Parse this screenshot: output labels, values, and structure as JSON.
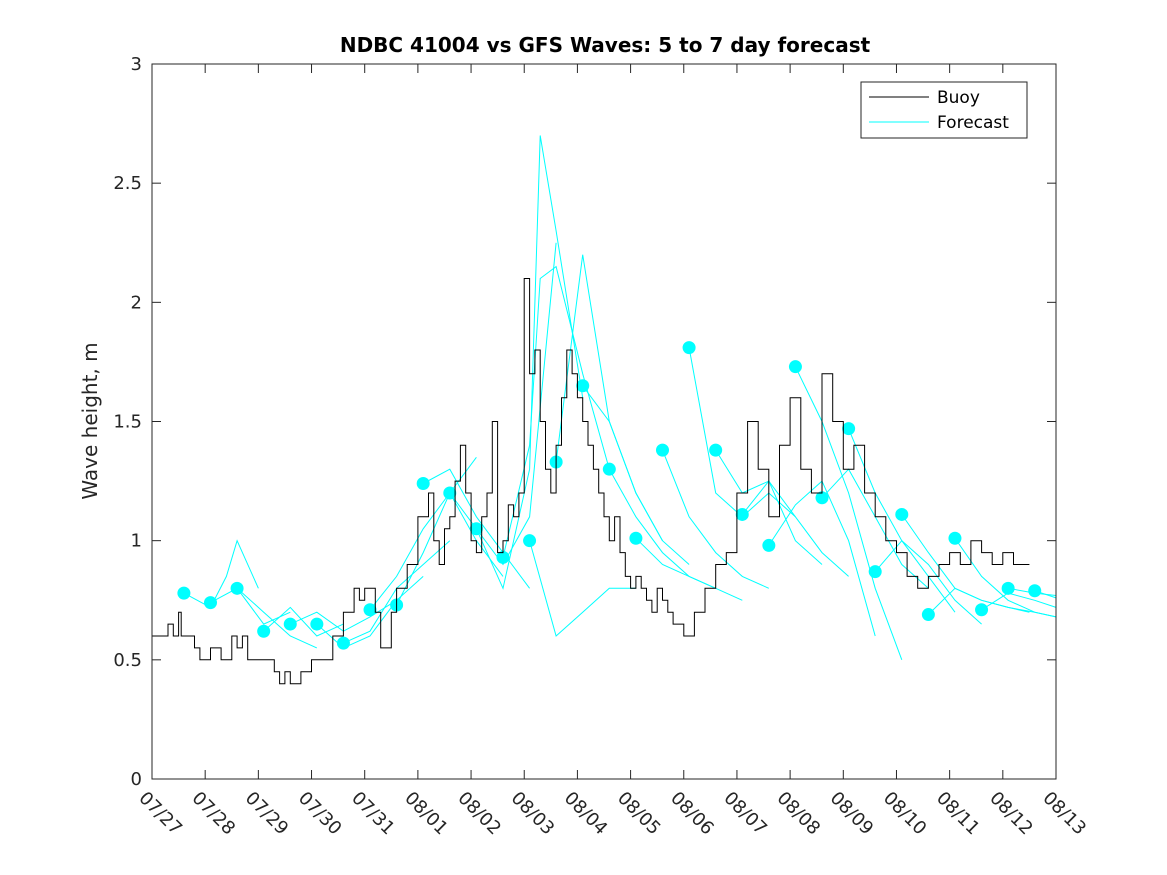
{
  "chart_data": {
    "type": "line",
    "title": "NDBC 41004 vs GFS Waves: 5 to 7 day forecast",
    "xlabel": "",
    "ylabel": "Wave height, m",
    "ylim": [
      0,
      3
    ],
    "yticks": [
      "0",
      "0.5",
      "1",
      "1.5",
      "2",
      "2.5",
      "3"
    ],
    "xlim_days": [
      0,
      17
    ],
    "xtick_labels": [
      "07/27",
      "07/28",
      "07/29",
      "07/30",
      "07/31",
      "08/01",
      "08/02",
      "08/03",
      "08/04",
      "08/05",
      "08/06",
      "08/07",
      "08/08",
      "08/09",
      "08/10",
      "08/11",
      "08/12",
      "08/13"
    ],
    "grid": false,
    "legend_position": "top-right",
    "colors": {
      "buoy": "#000000",
      "forecast": "#00FFFF"
    },
    "legend": [
      "Buoy",
      "Forecast"
    ],
    "series": [
      {
        "name": "Buoy",
        "x": [
          0.0,
          0.3,
          0.4,
          0.5,
          0.55,
          0.8,
          0.9,
          1.1,
          1.3,
          1.5,
          1.6,
          1.7,
          1.8,
          1.9,
          2.0,
          2.3,
          2.4,
          2.5,
          2.6,
          2.8,
          3.0,
          3.2,
          3.4,
          3.6,
          3.8,
          3.9,
          4.0,
          4.2,
          4.3,
          4.5,
          4.6,
          4.8,
          5.0,
          5.2,
          5.3,
          5.4,
          5.5,
          5.6,
          5.7,
          5.8,
          5.9,
          6.0,
          6.1,
          6.2,
          6.3,
          6.4,
          6.5,
          6.6,
          6.7,
          6.8,
          6.9,
          7.0,
          7.1,
          7.2,
          7.3,
          7.4,
          7.5,
          7.6,
          7.7,
          7.8,
          7.9,
          8.0,
          8.1,
          8.2,
          8.3,
          8.4,
          8.5,
          8.6,
          8.7,
          8.8,
          8.9,
          9.0,
          9.1,
          9.2,
          9.3,
          9.4,
          9.5,
          9.6,
          9.7,
          9.8,
          10.0,
          10.2,
          10.4,
          10.6,
          10.8,
          11.0,
          11.2,
          11.4,
          11.6,
          11.8,
          12.0,
          12.2,
          12.4,
          12.6,
          12.8,
          13.0,
          13.2,
          13.4,
          13.6,
          13.8,
          14.0,
          14.2,
          14.4,
          14.6,
          14.8,
          15.0,
          15.2,
          15.4,
          15.6,
          15.8,
          16.0,
          16.2,
          16.5
        ],
        "y": [
          0.6,
          0.65,
          0.6,
          0.7,
          0.6,
          0.55,
          0.5,
          0.55,
          0.5,
          0.6,
          0.55,
          0.6,
          0.5,
          0.5,
          0.5,
          0.45,
          0.4,
          0.45,
          0.4,
          0.45,
          0.5,
          0.5,
          0.6,
          0.7,
          0.8,
          0.75,
          0.8,
          0.7,
          0.55,
          0.7,
          0.8,
          0.9,
          1.1,
          1.2,
          1.0,
          0.9,
          1.05,
          1.1,
          1.25,
          1.4,
          1.2,
          1.0,
          0.95,
          1.1,
          1.2,
          1.5,
          0.95,
          1.0,
          1.15,
          1.1,
          1.2,
          2.1,
          1.7,
          1.8,
          1.5,
          1.3,
          1.2,
          1.4,
          1.6,
          1.8,
          1.7,
          1.6,
          1.5,
          1.4,
          1.3,
          1.2,
          1.1,
          1.0,
          1.1,
          0.95,
          0.85,
          0.8,
          0.85,
          0.8,
          0.75,
          0.7,
          0.8,
          0.75,
          0.7,
          0.65,
          0.6,
          0.7,
          0.8,
          0.9,
          0.95,
          1.2,
          1.5,
          1.3,
          1.1,
          1.4,
          1.6,
          1.3,
          1.2,
          1.7,
          1.5,
          1.3,
          1.4,
          1.2,
          1.1,
          1.0,
          0.95,
          0.85,
          0.8,
          0.85,
          0.9,
          0.95,
          0.9,
          1.0,
          0.95,
          0.9,
          0.95,
          0.9,
          0.9
        ]
      },
      {
        "name": "Forecast",
        "x": [
          0.6,
          1.1,
          1.4,
          1.6,
          2.0
        ],
        "y": [
          0.78,
          0.72,
          0.85,
          1.0,
          0.8
        ],
        "marker": {
          "x": 0.6,
          "y": 0.78
        }
      },
      {
        "name": "Forecast",
        "x": [
          1.1,
          1.6,
          2.1,
          2.6
        ],
        "y": [
          0.74,
          0.8,
          0.65,
          0.7
        ],
        "marker": {
          "x": 1.1,
          "y": 0.74
        }
      },
      {
        "name": "Forecast",
        "x": [
          1.6,
          2.1,
          2.6,
          3.1
        ],
        "y": [
          0.8,
          0.7,
          0.6,
          0.55
        ],
        "marker": {
          "x": 1.6,
          "y": 0.8
        }
      },
      {
        "name": "Forecast",
        "x": [
          2.1,
          2.6,
          3.1,
          3.6
        ],
        "y": [
          0.62,
          0.72,
          0.6,
          0.65
        ],
        "marker": {
          "x": 2.1,
          "y": 0.62
        }
      },
      {
        "name": "Forecast",
        "x": [
          2.6,
          3.1,
          3.6,
          4.1,
          4.6
        ],
        "y": [
          0.65,
          0.7,
          0.62,
          0.68,
          0.75
        ],
        "marker": {
          "x": 2.6,
          "y": 0.65
        }
      },
      {
        "name": "Forecast",
        "x": [
          3.1,
          3.6,
          4.1,
          4.6,
          5.1
        ],
        "y": [
          0.65,
          0.55,
          0.6,
          0.75,
          0.85
        ],
        "marker": {
          "x": 3.1,
          "y": 0.65
        }
      },
      {
        "name": "Forecast",
        "x": [
          3.6,
          4.1,
          4.6,
          5.1,
          5.6
        ],
        "y": [
          0.57,
          0.62,
          0.8,
          0.9,
          1.0
        ],
        "marker": {
          "x": 3.6,
          "y": 0.57
        }
      },
      {
        "name": "Forecast",
        "x": [
          4.1,
          4.6,
          5.1,
          5.6,
          6.1
        ],
        "y": [
          0.71,
          0.85,
          1.05,
          1.2,
          1.35
        ],
        "marker": {
          "x": 4.1,
          "y": 0.71
        }
      },
      {
        "name": "Forecast",
        "x": [
          4.6,
          5.1,
          5.6,
          6.1,
          6.6
        ],
        "y": [
          0.73,
          0.95,
          1.2,
          1.0,
          0.85
        ],
        "marker": {
          "x": 4.6,
          "y": 0.73
        }
      },
      {
        "name": "Forecast",
        "x": [
          5.1,
          5.6,
          6.1,
          6.6,
          7.1
        ],
        "y": [
          1.24,
          1.3,
          1.1,
          0.95,
          0.8
        ],
        "marker": {
          "x": 5.1,
          "y": 1.24
        }
      },
      {
        "name": "Forecast",
        "x": [
          5.6,
          6.1,
          6.6,
          7.1,
          7.6
        ],
        "y": [
          1.2,
          1.05,
          0.9,
          1.1,
          2.25
        ],
        "marker": {
          "x": 5.6,
          "y": 1.2
        }
      },
      {
        "name": "Forecast",
        "x": [
          6.1,
          6.6,
          7.1,
          7.3,
          7.6,
          8.1
        ],
        "y": [
          1.05,
          0.8,
          1.3,
          2.7,
          2.3,
          1.6
        ],
        "marker": {
          "x": 6.1,
          "y": 1.05
        }
      },
      {
        "name": "Forecast",
        "x": [
          6.6,
          7.1,
          7.3,
          7.6,
          8.1,
          8.6
        ],
        "y": [
          0.93,
          1.4,
          2.1,
          2.15,
          1.7,
          1.3
        ],
        "marker": {
          "x": 6.6,
          "y": 0.93
        }
      },
      {
        "name": "Forecast",
        "x": [
          7.1,
          7.6,
          8.1,
          8.6,
          9.1
        ],
        "y": [
          1.0,
          0.6,
          0.7,
          0.8,
          0.8
        ],
        "marker": {
          "x": 7.1,
          "y": 1.0
        }
      },
      {
        "name": "Forecast",
        "x": [
          7.6,
          8.1,
          8.6,
          9.1,
          9.6
        ],
        "y": [
          1.33,
          2.2,
          1.5,
          1.2,
          1.0
        ],
        "marker": {
          "x": 7.6,
          "y": 1.33
        }
      },
      {
        "name": "Forecast",
        "x": [
          8.1,
          8.6,
          9.1,
          9.6,
          10.1
        ],
        "y": [
          1.65,
          1.5,
          1.2,
          1.0,
          0.9
        ],
        "marker": {
          "x": 8.1,
          "y": 1.65
        }
      },
      {
        "name": "Forecast",
        "x": [
          8.6,
          9.1,
          9.6,
          10.1,
          10.6
        ],
        "y": [
          1.3,
          1.1,
          0.95,
          0.85,
          0.8
        ],
        "marker": {
          "x": 8.6,
          "y": 1.3
        }
      },
      {
        "name": "Forecast",
        "x": [
          9.1,
          9.6,
          10.1,
          10.6,
          11.1
        ],
        "y": [
          1.01,
          0.9,
          0.85,
          0.8,
          0.75
        ],
        "marker": {
          "x": 9.1,
          "y": 1.01
        }
      },
      {
        "name": "Forecast",
        "x": [
          9.6,
          10.1,
          10.6,
          11.1,
          11.6
        ],
        "y": [
          1.38,
          1.1,
          0.95,
          0.85,
          0.8
        ],
        "marker": {
          "x": 9.6,
          "y": 1.38
        }
      },
      {
        "name": "Forecast",
        "x": [
          10.1,
          10.6,
          11.1,
          11.6,
          12.1
        ],
        "y": [
          1.81,
          1.2,
          1.1,
          1.2,
          1.1
        ],
        "marker": {
          "x": 10.1,
          "y": 1.81
        }
      },
      {
        "name": "Forecast",
        "x": [
          10.6,
          11.1,
          11.6,
          12.1,
          12.6
        ],
        "y": [
          1.38,
          1.2,
          1.25,
          1.0,
          0.9
        ],
        "marker": {
          "x": 10.6,
          "y": 1.38
        }
      },
      {
        "name": "Forecast",
        "x": [
          11.1,
          11.6,
          12.1,
          12.6,
          13.1
        ],
        "y": [
          1.11,
          1.25,
          1.1,
          0.95,
          0.85
        ],
        "marker": {
          "x": 11.1,
          "y": 1.11
        }
      },
      {
        "name": "Forecast",
        "x": [
          11.6,
          12.1,
          12.6,
          13.1,
          13.6
        ],
        "y": [
          0.98,
          1.15,
          1.25,
          1.0,
          0.6
        ],
        "marker": {
          "x": 11.6,
          "y": 0.98
        }
      },
      {
        "name": "Forecast",
        "x": [
          12.1,
          12.6,
          13.1,
          13.6,
          14.1
        ],
        "y": [
          1.73,
          1.5,
          1.2,
          0.8,
          0.5
        ],
        "marker": {
          "x": 12.1,
          "y": 1.73
        }
      },
      {
        "name": "Forecast",
        "x": [
          12.6,
          13.1,
          13.6,
          14.1,
          14.6
        ],
        "y": [
          1.18,
          1.3,
          1.1,
          0.9,
          0.8
        ],
        "marker": {
          "x": 12.6,
          "y": 1.18
        }
      },
      {
        "name": "Forecast",
        "x": [
          13.1,
          13.6,
          14.1,
          14.6,
          15.1
        ],
        "y": [
          1.47,
          1.2,
          1.0,
          0.85,
          0.7
        ],
        "marker": {
          "x": 13.1,
          "y": 1.47
        }
      },
      {
        "name": "Forecast",
        "x": [
          13.6,
          14.1,
          14.6,
          15.1,
          15.6
        ],
        "y": [
          0.87,
          1.0,
          0.9,
          0.75,
          0.65
        ],
        "marker": {
          "x": 13.6,
          "y": 0.87
        }
      },
      {
        "name": "Forecast",
        "x": [
          14.1,
          14.6,
          15.1,
          15.6,
          16.1,
          16.5
        ],
        "y": [
          1.11,
          0.95,
          0.8,
          0.75,
          0.72,
          0.7
        ],
        "marker": {
          "x": 14.1,
          "y": 1.11
        }
      },
      {
        "name": "Forecast",
        "x": [
          14.6,
          15.1,
          15.6,
          16.1,
          16.6,
          17.0
        ],
        "y": [
          0.69,
          0.8,
          0.75,
          0.72,
          0.7,
          0.68
        ],
        "marker": {
          "x": 14.6,
          "y": 0.69
        }
      },
      {
        "name": "Forecast",
        "x": [
          15.1,
          15.6,
          16.1,
          16.6,
          17.0
        ],
        "y": [
          1.01,
          0.85,
          0.75,
          0.7,
          0.68
        ],
        "marker": {
          "x": 15.1,
          "y": 1.01
        }
      },
      {
        "name": "Forecast",
        "x": [
          15.6,
          16.1,
          16.6,
          17.0
        ],
        "y": [
          0.71,
          0.78,
          0.75,
          0.72
        ],
        "marker": {
          "x": 15.6,
          "y": 0.71
        }
      },
      {
        "name": "Forecast",
        "x": [
          16.1,
          16.6,
          17.0
        ],
        "y": [
          0.8,
          0.78,
          0.77
        ],
        "marker": {
          "x": 16.1,
          "y": 0.8
        }
      },
      {
        "name": "Forecast",
        "x": [
          16.6,
          17.0
        ],
        "y": [
          0.79,
          0.76
        ],
        "marker": {
          "x": 16.6,
          "y": 0.79
        }
      }
    ]
  }
}
